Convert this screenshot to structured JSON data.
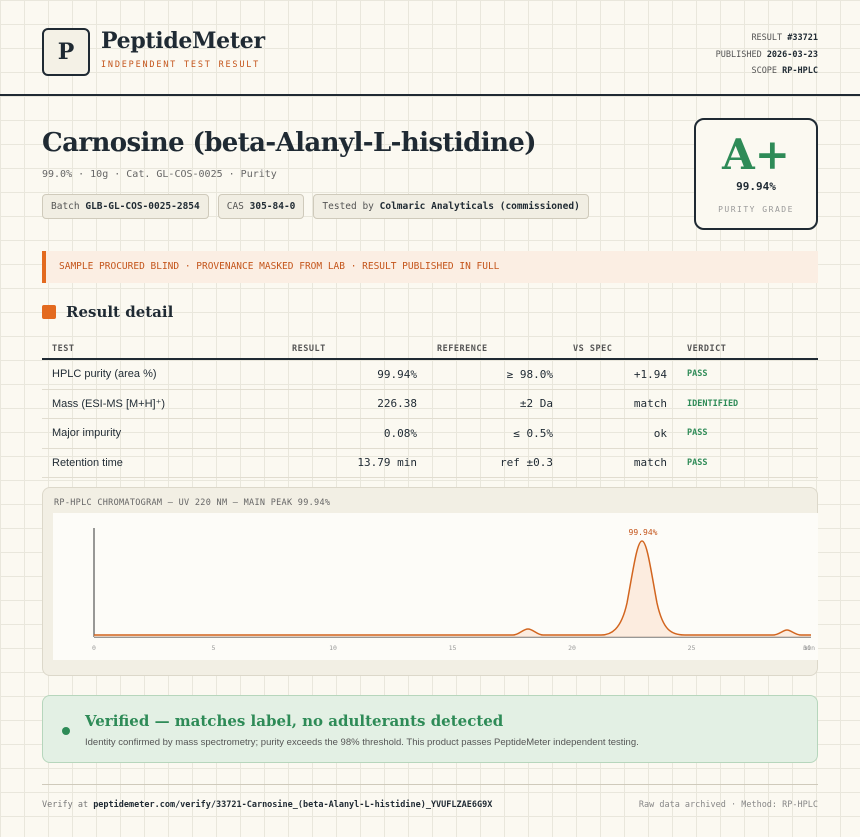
{
  "header": {
    "logo_letter": "P",
    "brand": "PeptideMeter",
    "tagline": "INDEPENDENT TEST RESULT",
    "result_label": "RESULT",
    "result_value": "#33721",
    "published_label": "PUBLISHED",
    "published_value": "2026-03-23",
    "scope_label": "SCOPE",
    "scope_value": "RP-HPLC"
  },
  "product": {
    "title": "Carnosine (beta-Alanyl-L-histidine)",
    "subline": "99.0% · 10g · Cat. GL-COS-0025 · Purity",
    "batch_label": "Batch",
    "batch_value": "GLB-GL-COS-0025-2854",
    "cas_label": "CAS",
    "cas_value": "305-84-0",
    "tested_label": "Tested by",
    "tested_value": "Colmaric Analyticals (commissioned)"
  },
  "grade": {
    "letter": "A+",
    "value": "99.94%",
    "label": "PURITY GRADE"
  },
  "notice": "SAMPLE PROCURED BLIND · PROVENANCE MASKED FROM LAB · RESULT PUBLISHED IN FULL",
  "section_title": "Result detail",
  "table": {
    "headers": [
      "TEST",
      "RESULT",
      "REFERENCE",
      "VS SPEC",
      "VERDICT"
    ],
    "rows": [
      {
        "test": "HPLC purity (area %)",
        "result": "99.94%",
        "reference": "≥ 98.0%",
        "vs_spec": "+1.94",
        "verdict": "PASS"
      },
      {
        "test": "Mass (ESI-MS [M+H]⁺)",
        "result": "226.38",
        "reference": "±2 Da",
        "vs_spec": "match",
        "verdict": "IDENTIFIED"
      },
      {
        "test": "Major impurity",
        "result": "0.08%",
        "reference": "≤ 0.5%",
        "vs_spec": "ok",
        "verdict": "PASS"
      },
      {
        "test": "Retention time",
        "result": "13.79 min",
        "reference": "ref ±0.3",
        "vs_spec": "match",
        "verdict": "PASS"
      }
    ]
  },
  "chromatogram": {
    "title": "RP-HPLC CHROMATOGRAM — UV 220 NM — MAIN PEAK 99.94%",
    "peak_label": "99.94%",
    "x_ticks": [
      "0",
      "5",
      "10",
      "15",
      "20",
      "25",
      "30"
    ],
    "x_unit": "min",
    "color": "#d2651f"
  },
  "verify": {
    "title": "Verified — matches label, no adulterants detected",
    "text": "Identity confirmed by mass spectrometry; purity exceeds the 98% threshold. This product passes PeptideMeter independent testing."
  },
  "footer": {
    "verify_label": "Verify at",
    "verify_url": "peptidemeter.com/verify/33721-Carnosine_(beta-Alanyl-L-histidine)_YVUFLZAE6G9X",
    "right": "Raw data archived · Method: RP-HPLC"
  }
}
